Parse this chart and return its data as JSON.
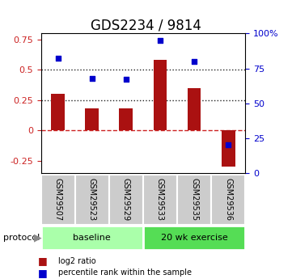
{
  "title": "GDS2234 / 9814",
  "samples": [
    "GSM29507",
    "GSM29523",
    "GSM29529",
    "GSM29533",
    "GSM29535",
    "GSM29536"
  ],
  "log2_ratio": [
    0.3,
    0.18,
    0.18,
    0.58,
    0.35,
    -0.3
  ],
  "percentile_rank": [
    82,
    68,
    67,
    95,
    80,
    20
  ],
  "bar_color": "#aa1111",
  "dot_color": "#0000cc",
  "ylim_left": [
    -0.35,
    0.8
  ],
  "ylim_right": [
    0,
    100
  ],
  "yticks_left": [
    -0.25,
    0.0,
    0.25,
    0.5,
    0.75
  ],
  "yticks_right": [
    0,
    25,
    50,
    75,
    100
  ],
  "hlines": [
    0.25,
    0.5
  ],
  "hline_zero_color": "#cc2222",
  "hline_dotted_color": "#222222",
  "groups": [
    {
      "label": "baseline",
      "start": 0,
      "end": 3,
      "color": "#aaffaa"
    },
    {
      "label": "20 wk exercise",
      "start": 3,
      "end": 6,
      "color": "#55dd55"
    }
  ],
  "protocol_label": "protocol",
  "legend_items": [
    {
      "color": "#aa1111",
      "label": "log2 ratio"
    },
    {
      "color": "#0000cc",
      "label": "percentile rank within the sample"
    }
  ],
  "bg_color": "#ffffff",
  "plot_bg": "#ffffff",
  "tick_label_area_color": "#cccccc",
  "title_fontsize": 12,
  "tick_fontsize": 8,
  "sample_fontsize": 7,
  "group_fontsize": 8,
  "legend_fontsize": 7
}
